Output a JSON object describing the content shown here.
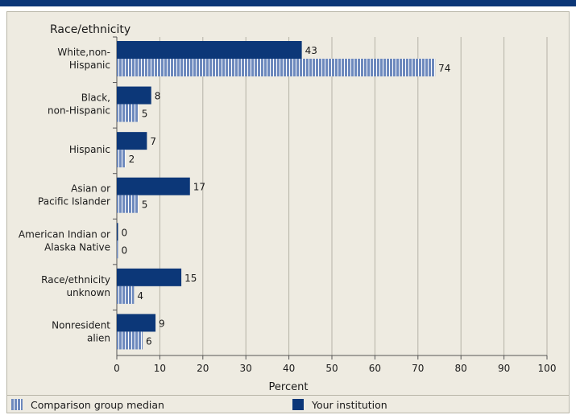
{
  "chart_data": {
    "type": "bar",
    "orientation": "horizontal",
    "title": "Race/ethnicity",
    "xlabel": "Percent",
    "xlim": [
      0,
      100
    ],
    "xticks": [
      0,
      10,
      20,
      30,
      40,
      50,
      60,
      70,
      80,
      90,
      100
    ],
    "grid": true,
    "categories": [
      [
        "White,non-",
        "Hispanic"
      ],
      [
        "Black,",
        "non-Hispanic"
      ],
      [
        "Hispanic"
      ],
      [
        "Asian or",
        "Pacific Islander"
      ],
      [
        "American Indian or",
        "Alaska Native"
      ],
      [
        "Race/ethnicity",
        "unknown"
      ],
      [
        "Nonresident",
        "alien"
      ]
    ],
    "series": [
      {
        "name": "Your institution",
        "color": "#0c3778",
        "values": [
          43,
          8,
          7,
          17,
          0,
          15,
          9
        ]
      },
      {
        "name": "Comparison group median",
        "color": "#6d89bd",
        "pattern": "vertical-stripes",
        "values": [
          74,
          5,
          2,
          5,
          0,
          4,
          6
        ]
      }
    ],
    "legend_position": "bottom"
  },
  "legend": {
    "comparison_label": "Comparison group median",
    "institution_label": "Your institution"
  },
  "colors": {
    "header_bar": "#0c3778",
    "background": "#eeebe1",
    "grid": "#b5b2a6"
  }
}
